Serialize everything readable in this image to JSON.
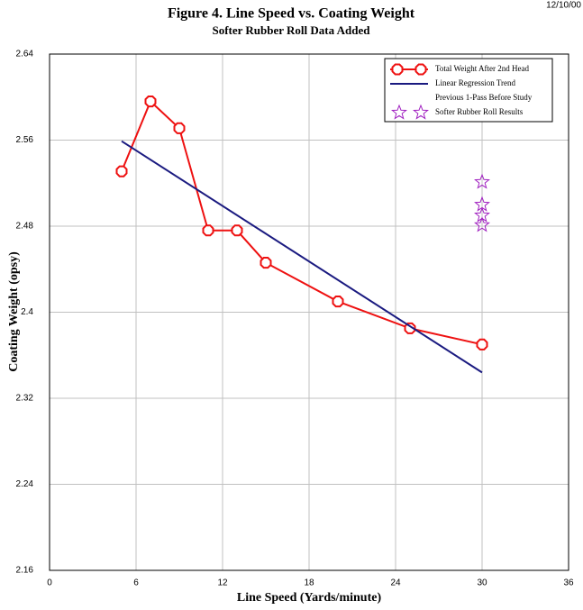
{
  "chart_data": {
    "type": "line",
    "title": "Figure 4.  Line Speed vs. Coating Weight",
    "subtitle": "Softer Rubber Roll Data Added",
    "date": "12/10/00",
    "xlabel": "Line Speed (Yards/minute)",
    "ylabel": "Coating Weight (opsy)",
    "xlim": [
      0,
      36
    ],
    "xticks": [
      0,
      6,
      12,
      18,
      24,
      30,
      36
    ],
    "ylim": [
      2.16,
      2.64
    ],
    "yticks": [
      2.16,
      2.24,
      2.32,
      2.4,
      2.48,
      2.56,
      2.64
    ],
    "grid": true,
    "legend": "top-right",
    "series": [
      {
        "name": "Total Weight After 2nd Head",
        "color": "#ee1111",
        "marker": "octagon",
        "x": [
          5,
          7,
          9,
          11,
          13,
          15,
          20,
          25,
          30
        ],
        "values": [
          2.531,
          2.596,
          2.571,
          2.476,
          2.476,
          2.446,
          2.41,
          2.385,
          2.37
        ]
      },
      {
        "name": "Linear Regression Trend",
        "color": "#1a1a80",
        "marker": "none",
        "x": [
          5,
          30
        ],
        "values": [
          2.559,
          2.344
        ]
      },
      {
        "name": "Previous 1-Pass Before Study",
        "marker": "none",
        "x": [],
        "values": []
      },
      {
        "name": "Softer Rubber Roll Results",
        "color": "#a020c0",
        "marker": "star",
        "noline": true,
        "x": [
          30,
          30,
          30,
          30
        ],
        "values": [
          2.521,
          2.5,
          2.49,
          2.481
        ]
      }
    ]
  }
}
